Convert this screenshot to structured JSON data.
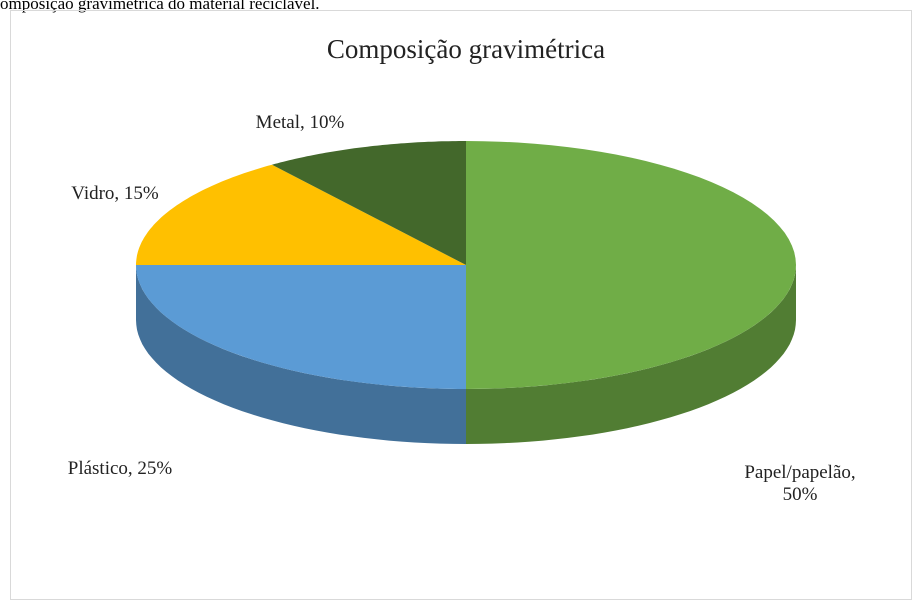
{
  "caption": "omposição gravimétrica do material reciclável.",
  "chart_data": {
    "type": "pie",
    "title": "Composição gravimétrica",
    "values": [
      50,
      25,
      15,
      10
    ],
    "labels": [
      "Papel/papelão, 50%",
      "Plástico, 25%",
      "Vidro, 15%",
      "Metal, 10%"
    ],
    "colors": [
      "#70ad47",
      "#5b9bd5",
      "#ffc000",
      "#43682b"
    ]
  }
}
